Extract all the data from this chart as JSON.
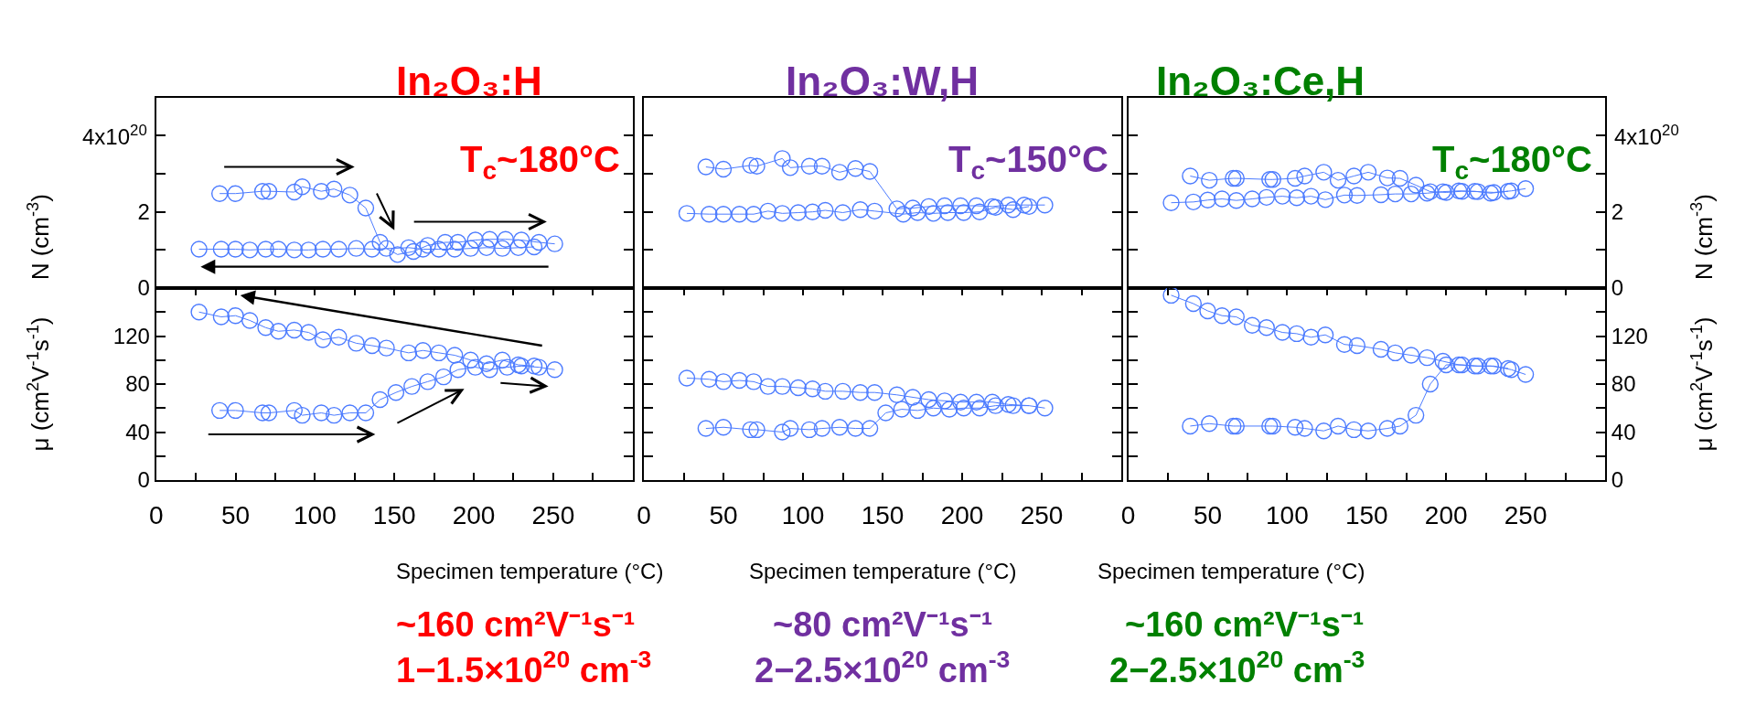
{
  "chart_data": [
    {
      "type": "line",
      "title": "In₂O₃:H",
      "annotations": [
        "T$_{c}$~180°C",
        "4x10$^{20}$"
      ],
      "marker": "circle",
      "tick_labels": "y",
      "ylabel": "N (cm$^{-3}$)",
      "xlim": [
        0,
        300
      ],
      "ylim": [
        0,
        5
      ],
      "yticks": [
        0,
        {
          "value": 1,
          "label": null
        },
        2,
        {
          "value": 3,
          "label": null
        },
        {
          "value": 4,
          "label": null
        }
      ],
      "series": [
        {
          "color": "#4d7cff",
          "x": [
            40,
            50,
            67,
            71,
            87,
            92,
            104,
            112,
            122,
            132,
            141,
            145,
            152,
            162,
            171,
            182,
            190,
            201,
            210,
            220,
            230,
            241,
            251
          ],
          "values": [
            2.48,
            2.48,
            2.54,
            2.54,
            2.52,
            2.66,
            2.54,
            2.6,
            2.44,
            2.1,
            1.2,
            1.04,
            0.88,
            0.96,
            1.12,
            1.2,
            1.2,
            1.26,
            1.28,
            1.28,
            1.26,
            1.2,
            1.16
          ]
        },
        {
          "color": "#4d7cff",
          "x": [
            238,
            228,
            218,
            208,
            198,
            188,
            178,
            168,
            159,
            136,
            126,
            115,
            105,
            96,
            87,
            77,
            69,
            59,
            50,
            41,
            27
          ],
          "values": [
            1.08,
            1.06,
            1.04,
            1.06,
            1.04,
            1.02,
            1.02,
            1.02,
            1.06,
            1.02,
            1.04,
            1.02,
            1.02,
            1.0,
            1.0,
            1.02,
            1.02,
            1.0,
            1.02,
            1.02,
            1.02
          ]
        }
      ]
    },
    {
      "type": "line",
      "title": "In₂O₃:W,H",
      "annotations": [
        "T$_{c}$~150°C"
      ],
      "marker": "circle",
      "tick_labels": false,
      "xlim": [
        0,
        300
      ],
      "ylim": [
        0,
        5
      ],
      "yticks": [
        {
          "value": 0,
          "label": null
        },
        {
          "value": 1,
          "label": null
        },
        {
          "value": 2,
          "label": null
        },
        {
          "value": 3,
          "label": null
        },
        {
          "value": 4,
          "label": null
        }
      ],
      "series": [
        {
          "color": "#4d7cff",
          "x": [
            39,
            50,
            67,
            71,
            87,
            92,
            104,
            112,
            123,
            133,
            142,
            159,
            169,
            179,
            189,
            199,
            209,
            219,
            229,
            239,
            252
          ],
          "values": [
            3.18,
            3.12,
            3.22,
            3.2,
            3.4,
            3.16,
            3.2,
            3.2,
            3.04,
            3.14,
            3.06,
            2.08,
            2.1,
            2.14,
            2.16,
            2.16,
            2.16,
            2.14,
            2.18,
            2.18,
            2.18
          ]
        },
        {
          "color": "#4d7cff",
          "x": [
            242,
            232,
            221,
            211,
            201,
            191,
            182,
            172,
            163,
            145,
            136,
            125,
            114,
            106,
            97,
            87,
            78,
            69,
            60,
            50,
            41,
            27
          ],
          "values": [
            2.14,
            2.06,
            2.12,
            2.0,
            1.98,
            1.98,
            1.96,
            1.98,
            1.94,
            2.02,
            2.06,
            1.98,
            2.04,
            2.0,
            1.98,
            1.96,
            2.02,
            1.94,
            1.94,
            1.94,
            1.94,
            1.96
          ]
        }
      ]
    },
    {
      "type": "line",
      "title": "In₂O₃:Ce,H",
      "annotations": [
        "T$_{c}$~180°C",
        "4x10$^{20}$"
      ],
      "marker": "circle",
      "tick_labels": "y2",
      "y2label": "N (cm$^{-3}$)",
      "xlim": [
        0,
        300
      ],
      "y2lim": [
        0,
        5
      ],
      "y2ticks": [
        0,
        {
          "value": 1,
          "label": null
        },
        2,
        {
          "value": 3,
          "label": null
        },
        {
          "value": 4,
          "label": null
        }
      ],
      "series": [
        {
          "color": "#4d7cff",
          "axis": "y2",
          "x": [
            39,
            51,
            66,
            68,
            89,
            91,
            105,
            111,
            123,
            132,
            142,
            151,
            163,
            171,
            181,
            190,
            200,
            210,
            220,
            230,
            241,
            250
          ],
          "values": [
            2.94,
            2.83,
            2.88,
            2.88,
            2.85,
            2.85,
            2.88,
            2.94,
            3.04,
            2.83,
            2.94,
            3.04,
            2.89,
            2.88,
            2.7,
            2.53,
            2.51,
            2.54,
            2.53,
            2.51,
            2.55,
            2.61
          ]
        },
        {
          "color": "#4d7cff",
          "axis": "y2",
          "x": [
            239,
            228,
            218,
            208,
            198,
            188,
            178,
            168,
            159,
            144,
            136,
            124,
            115,
            106,
            97,
            87,
            78,
            68,
            59,
            50,
            41,
            27
          ],
          "values": [
            2.54,
            2.49,
            2.54,
            2.55,
            2.53,
            2.49,
            2.47,
            2.47,
            2.45,
            2.43,
            2.44,
            2.32,
            2.41,
            2.37,
            2.41,
            2.38,
            2.34,
            2.3,
            2.34,
            2.31,
            2.26,
            2.24
          ]
        }
      ]
    },
    {
      "type": "line",
      "xlabel": "Specimen temperature (°C)",
      "ylabel": "μ (cm$^{2}$V$^{-1}$s$^{-1}$)",
      "annotations": [
        "~160 cm²V⁻¹s⁻¹",
        "1−1.5×10$^{20}$ cm$^{-3}$"
      ],
      "marker": "circle",
      "xlim": [
        0,
        300
      ],
      "xticks": [
        0,
        {
          "value": 25,
          "label": null
        },
        50,
        {
          "value": 75,
          "label": null
        },
        100,
        {
          "value": 125,
          "label": null
        },
        150,
        {
          "value": 175,
          "label": null
        },
        200,
        {
          "value": 225,
          "label": null
        },
        250,
        {
          "value": 275,
          "label": null
        }
      ],
      "ylim": [
        0,
        160
      ],
      "yticks": [
        0,
        {
          "value": 20,
          "label": null
        },
        40,
        {
          "value": 60,
          "label": null
        },
        80,
        {
          "value": 100,
          "label": null
        },
        120,
        {
          "value": 140,
          "label": null
        }
      ],
      "series": [
        {
          "color": "#4d7cff",
          "x": [
            40,
            50,
            67,
            71,
            87,
            92,
            104,
            112,
            122,
            132,
            141,
            151,
            161,
            171,
            181,
            190,
            201,
            210,
            221,
            230,
            241,
            251
          ],
          "values": [
            58,
            58,
            56,
            56,
            58,
            54,
            56,
            54,
            56,
            56,
            67,
            73,
            78,
            82,
            86,
            92,
            94,
            92,
            94,
            95,
            94,
            92
          ]
        },
        {
          "color": "#4d7cff",
          "x": [
            238,
            228,
            218,
            208,
            198,
            188,
            178,
            168,
            159,
            145,
            136,
            126,
            115,
            105,
            96,
            87,
            77,
            69,
            59,
            50,
            41,
            27
          ],
          "values": [
            95,
            96,
            100,
            97,
            100,
            104,
            106,
            108,
            106,
            110,
            112,
            114,
            119,
            117,
            123,
            125,
            124,
            127,
            133,
            137,
            136,
            140
          ]
        }
      ]
    },
    {
      "type": "line",
      "xlabel": "Specimen temperature (°C)",
      "annotations": [
        "~80 cm²V⁻¹s⁻¹",
        "2−2.5×10$^{20}$ cm$^{-3}$"
      ],
      "marker": "circle",
      "tick_labels": "x",
      "xlim": [
        0,
        300
      ],
      "xticks": [
        0,
        {
          "value": 25,
          "label": null
        },
        50,
        {
          "value": 75,
          "label": null
        },
        100,
        {
          "value": 125,
          "label": null
        },
        150,
        {
          "value": 175,
          "label": null
        },
        200,
        {
          "value": 225,
          "label": null
        },
        250,
        {
          "value": 275,
          "label": null
        }
      ],
      "ylim": [
        0,
        160
      ],
      "yticks": [
        {
          "value": 0,
          "label": null
        },
        {
          "value": 20,
          "label": null
        },
        {
          "value": 40,
          "label": null
        },
        {
          "value": 60,
          "label": null
        },
        {
          "value": 80,
          "label": null
        },
        {
          "value": 100,
          "label": null
        },
        {
          "value": 120,
          "label": null
        },
        {
          "value": 140,
          "label": null
        }
      ],
      "series": [
        {
          "color": "#4d7cff",
          "x": [
            39,
            50,
            67,
            71,
            87,
            92,
            104,
            112,
            123,
            133,
            142,
            152,
            162,
            172,
            182,
            192,
            201,
            211,
            221,
            232,
            242,
            252
          ],
          "values": [
            43,
            44,
            42,
            42,
            40,
            43,
            42,
            43,
            44,
            43,
            43,
            56,
            59,
            58,
            60,
            59,
            60,
            60,
            62,
            62,
            62,
            60
          ]
        },
        {
          "color": "#4d7cff",
          "x": [
            242,
            229,
            219,
            209,
            199,
            189,
            179,
            169,
            159,
            145,
            136,
            125,
            114,
            106,
            97,
            87,
            78,
            69,
            60,
            50,
            41,
            27
          ],
          "values": [
            62,
            63,
            65,
            65,
            65,
            66,
            67,
            69,
            71,
            73,
            73,
            74,
            74,
            76,
            77,
            78,
            78,
            82,
            83,
            82,
            84,
            85
          ]
        }
      ]
    },
    {
      "type": "line",
      "xlabel": "Specimen temperature (°C)",
      "y2label": "μ (cm$^{2}$V$^{-1}$s$^{-1}$)",
      "annotations": [
        "~160 cm²V⁻¹s⁻¹",
        "2−2.5×10$^{20}$ cm$^{-3}$"
      ],
      "marker": "circle",
      "xlim": [
        0,
        300
      ],
      "xticks": [
        0,
        {
          "value": 25,
          "label": null
        },
        50,
        {
          "value": 75,
          "label": null
        },
        100,
        {
          "value": 125,
          "label": null
        },
        150,
        {
          "value": 175,
          "label": null
        },
        200,
        {
          "value": 225,
          "label": null
        },
        250,
        {
          "value": 275,
          "label": null
        }
      ],
      "y2lim": [
        0,
        160
      ],
      "y2ticks": [
        0,
        {
          "value": 20,
          "label": null
        },
        40,
        {
          "value": 60,
          "label": null
        },
        80,
        {
          "value": 100,
          "label": null
        },
        120,
        {
          "value": 140,
          "label": null
        }
      ],
      "series": [
        {
          "color": "#4d7cff",
          "axis": "y2",
          "x": [
            39,
            51,
            66,
            68,
            89,
            91,
            105,
            111,
            123,
            132,
            142,
            151,
            163,
            171,
            181,
            190,
            200,
            210,
            220,
            230,
            241,
            250
          ],
          "values": [
            45,
            47,
            45,
            45,
            45,
            45,
            44,
            43,
            41,
            45,
            42,
            41,
            43,
            45,
            54,
            80,
            96,
            96,
            95,
            95,
            92,
            88
          ]
        },
        {
          "color": "#4d7cff",
          "axis": "y2",
          "x": [
            239,
            228,
            218,
            208,
            198,
            188,
            178,
            168,
            159,
            144,
            136,
            124,
            115,
            106,
            97,
            87,
            78,
            68,
            59,
            50,
            41,
            27
          ],
          "values": [
            93,
            95,
            95,
            96,
            99,
            102,
            104,
            106,
            109,
            112,
            113,
            121,
            119,
            122,
            123,
            127,
            129,
            136,
            137,
            141,
            147,
            154
          ]
        }
      ]
    }
  ]
}
